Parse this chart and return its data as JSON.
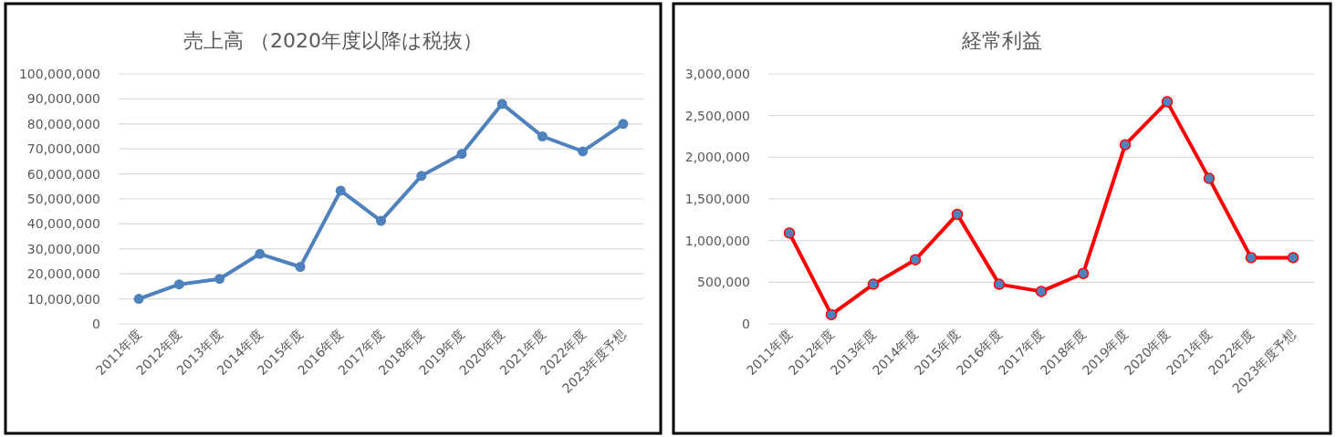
{
  "chart_data": [
    {
      "type": "line",
      "title": "売上高 （2020年度以降は税抜）",
      "categories": [
        "2011年度",
        "2012年度",
        "2013年度",
        "2014年度",
        "2015年度",
        "2016年度",
        "2017年度",
        "2018年度",
        "2019年度",
        "2020年度",
        "2021年度",
        "2022年度",
        "2023年度予想"
      ],
      "series": [
        {
          "color": "#4f81bd",
          "values": [
            10000000,
            15800000,
            18000000,
            28000000,
            22800000,
            53300000,
            41200000,
            59200000,
            68000000,
            88000000,
            75000000,
            69000000,
            80000000
          ]
        }
      ],
      "ylim": [
        0,
        100000000
      ],
      "yticks": [
        0,
        {
          "value": 10000000,
          "label": "10,000,000"
        },
        {
          "value": 20000000,
          "label": "20,000,000"
        },
        {
          "value": 30000000,
          "label": "30,000,000"
        },
        {
          "value": 40000000,
          "label": "40,000,000"
        },
        {
          "value": 50000000,
          "label": "50,000,000"
        },
        {
          "value": 60000000,
          "label": "60,000,000"
        },
        {
          "value": 70000000,
          "label": "70,000,000"
        },
        {
          "value": 80000000,
          "label": "80,000,000"
        },
        {
          "value": 90000000,
          "label": "90,000,000"
        },
        {
          "value": 100000000,
          "label": "100,000,000"
        }
      ],
      "grid": "y",
      "marker": "circle",
      "line_style": "solid"
    },
    {
      "type": "line",
      "title": "経常利益",
      "categories": [
        "2011年度",
        "2012年度",
        "2013年度",
        "2014年度",
        "2015年度",
        "2016年度",
        "2017年度",
        "2018年度",
        "2019年度",
        "2020年度",
        "2021年度",
        "2022年度",
        "2023年度予想"
      ],
      "series": [
        {
          "color": "#ff0000",
          "colors": [
            "#4f81bd",
            "#4f81bd",
            "#4f81bd",
            "#4f81bd",
            "#4f81bd",
            "#4f81bd",
            "#4f81bd",
            "#4f81bd",
            "#4f81bd",
            "#4f81bd",
            "#4f81bd",
            "#4f81bd",
            "#4f81bd"
          ],
          "values": [
            1090000,
            110000,
            475000,
            770000,
            1315000,
            475000,
            390000,
            605000,
            2150000,
            2665000,
            1745000,
            795000,
            795000
          ]
        }
      ],
      "ylim": [
        0,
        3000000
      ],
      "yticks": [
        0,
        {
          "value": 500000,
          "label": "500,000"
        },
        {
          "value": 1000000,
          "label": "1,000,000"
        },
        {
          "value": 1500000,
          "label": "1,500,000"
        },
        {
          "value": 2000000,
          "label": "2,000,000"
        },
        {
          "value": 2500000,
          "label": "2,500,000"
        },
        {
          "value": 3000000,
          "label": "3,000,000"
        }
      ],
      "grid": "y",
      "marker": "circle",
      "line_style": "solid"
    }
  ]
}
